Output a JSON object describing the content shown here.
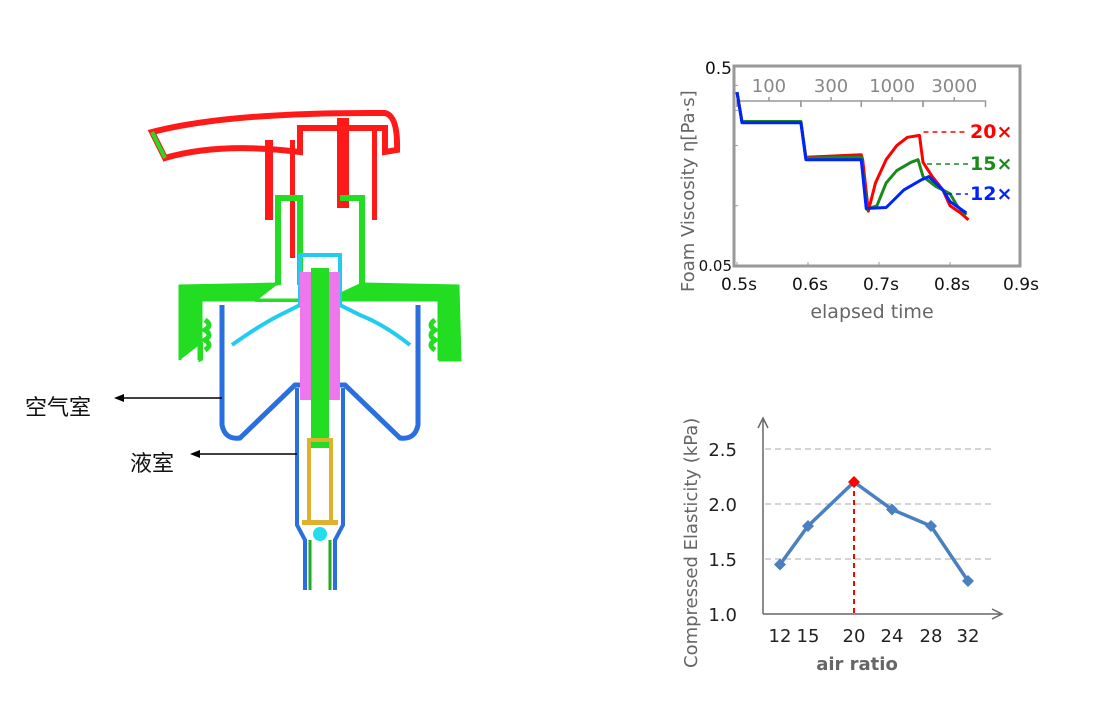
{
  "pump": {
    "labels": {
      "air_chamber": "空气室",
      "liquid_chamber": "液室"
    },
    "colors": {
      "head": "#ff1a1a",
      "collar": "#22dd22",
      "chamber": "#2a6fe0",
      "piston": "#ee77ee",
      "valve": "#22ddee",
      "spring": "#e0b030"
    }
  },
  "chart_data": [
    {
      "type": "line",
      "ylabel": "Foam Viscosity η[Pa·s]",
      "xlabel": "elapsed  time",
      "y_scale": "log",
      "ylim": [
        0.05,
        0.5
      ],
      "xlim": [
        0.5,
        0.9
      ],
      "y_tick_labels": [
        "0.5",
        "0.05"
      ],
      "x_tick_labels": [
        "0.5s",
        "0.6s",
        "0.7s",
        "0.8s",
        "0.9s"
      ],
      "x_ticks": [
        0.5,
        0.6,
        0.7,
        0.8,
        0.9
      ],
      "grid": false,
      "bracket_labels": [
        {
          "label": "100",
          "from": 0.5,
          "to": 0.59
        },
        {
          "label": "300",
          "from": 0.59,
          "to": 0.675
        },
        {
          "label": "1000",
          "from": 0.675,
          "to": 0.762
        },
        {
          "label": "3000",
          "from": 0.762,
          "to": 0.85
        }
      ],
      "series": [
        {
          "name": "20×",
          "color": "#ff0000",
          "points": [
            [
              0.5,
              0.37
            ],
            [
              0.507,
              0.264
            ],
            [
              0.59,
              0.264
            ],
            [
              0.597,
              0.175
            ],
            [
              0.675,
              0.18
            ],
            [
              0.677,
              0.17
            ],
            [
              0.685,
              0.094
            ],
            [
              0.695,
              0.13
            ],
            [
              0.71,
              0.17
            ],
            [
              0.725,
              0.2
            ],
            [
              0.74,
              0.22
            ],
            [
              0.757,
              0.225
            ],
            [
              0.762,
              0.165
            ],
            [
              0.775,
              0.14
            ],
            [
              0.79,
              0.12
            ],
            [
              0.8,
              0.1
            ],
            [
              0.815,
              0.092
            ],
            [
              0.826,
              0.085
            ]
          ]
        },
        {
          "name": "15×",
          "color": "#1a8a1a",
          "points": [
            [
              0.5,
              0.37
            ],
            [
              0.507,
              0.264
            ],
            [
              0.59,
              0.264
            ],
            [
              0.597,
              0.173
            ],
            [
              0.675,
              0.175
            ],
            [
              0.683,
              0.096
            ],
            [
              0.697,
              0.1
            ],
            [
              0.71,
              0.13
            ],
            [
              0.725,
              0.15
            ],
            [
              0.745,
              0.165
            ],
            [
              0.755,
              0.17
            ],
            [
              0.762,
              0.14
            ],
            [
              0.78,
              0.125
            ],
            [
              0.8,
              0.115
            ],
            [
              0.81,
              0.1
            ],
            [
              0.823,
              0.09
            ]
          ]
        },
        {
          "name": "12×",
          "color": "#0022ff",
          "points": [
            [
              0.5,
              0.37
            ],
            [
              0.507,
              0.26
            ],
            [
              0.59,
              0.26
            ],
            [
              0.597,
              0.17
            ],
            [
              0.675,
              0.17
            ],
            [
              0.682,
              0.097
            ],
            [
              0.71,
              0.098
            ],
            [
              0.735,
              0.12
            ],
            [
              0.76,
              0.135
            ],
            [
              0.77,
              0.14
            ],
            [
              0.79,
              0.12
            ],
            [
              0.8,
              0.105
            ],
            [
              0.823,
              0.092
            ]
          ]
        }
      ]
    },
    {
      "type": "line",
      "ylabel": "Compressed Elasticity (kPa)",
      "xlabel": "air ratio",
      "categories": [
        "12",
        "15",
        "20",
        "24",
        "28",
        "32"
      ],
      "x": [
        12,
        15,
        20,
        24,
        28,
        32
      ],
      "values": [
        1.45,
        1.8,
        2.2,
        1.95,
        1.8,
        1.3
      ],
      "ylim": [
        1.0,
        2.5
      ],
      "y_tick_labels": [
        "1.0",
        "1.5",
        "2.0",
        "2.5"
      ],
      "grid": true,
      "highlight": {
        "x": 20,
        "color": "#ff0000"
      },
      "line_color": "#4a7fc0"
    }
  ]
}
